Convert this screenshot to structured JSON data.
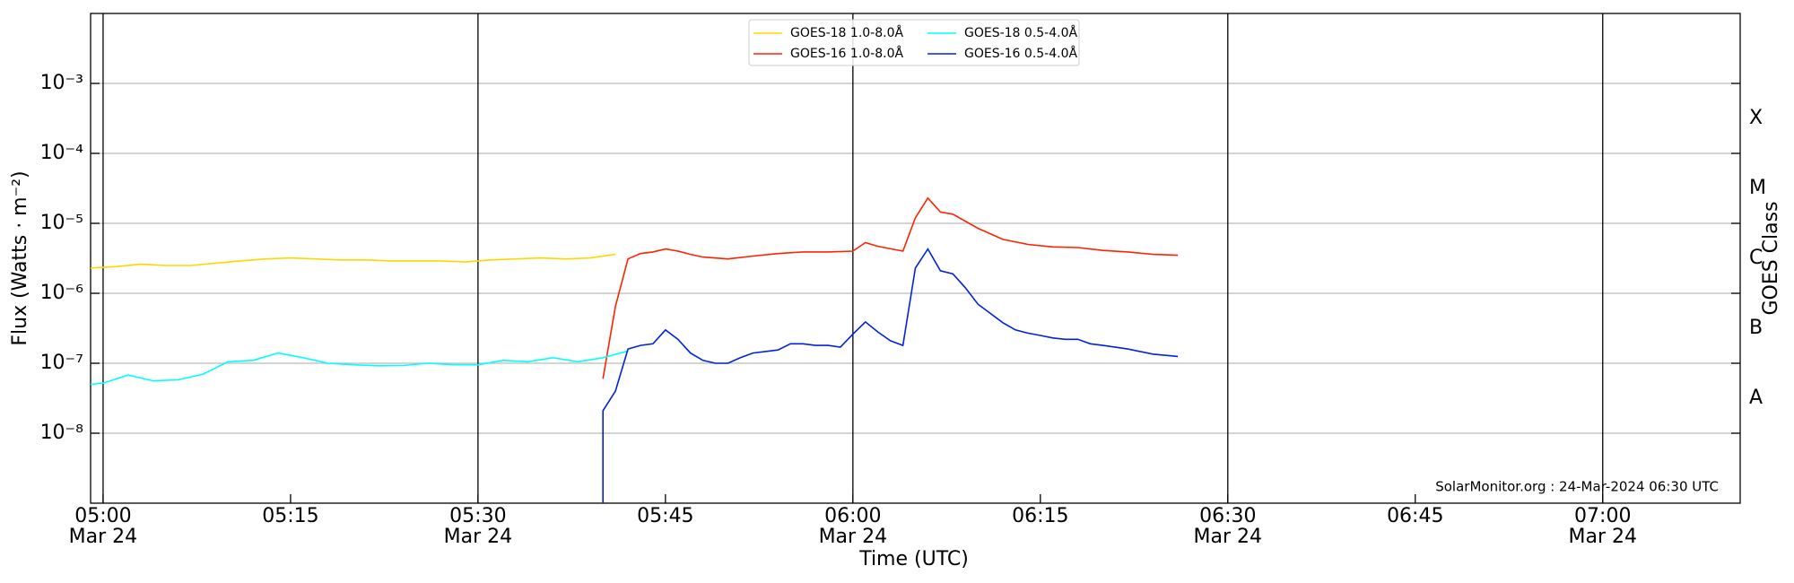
{
  "chart_data": {
    "type": "line",
    "log_y": true,
    "grid": true,
    "xlabel": "Time (UTC)",
    "ylabel": "Flux (Watts · m⁻²)",
    "y2label": "GOES Class",
    "annotation": "SolarMonitor.org : 24-Mar-2024 06:30 UTC",
    "legend": "top-center",
    "xlim": [
      "04:59",
      "07:11"
    ],
    "xticks": [
      {
        "value": "05:00",
        "label": [
          "05:00",
          "Mar 24"
        ]
      },
      "05:15",
      {
        "value": "05:30",
        "label": [
          "05:30",
          "Mar 24"
        ]
      },
      "05:45",
      {
        "value": "06:00",
        "label": [
          "06:00",
          "Mar 24"
        ]
      },
      "06:15",
      {
        "value": "06:30",
        "label": [
          "06:30",
          "Mar 24"
        ]
      },
      "06:45",
      {
        "value": "07:00",
        "label": [
          "07:00",
          "Mar 24"
        ]
      }
    ],
    "vlines": [
      "05:00",
      "05:30",
      "06:00",
      "06:30",
      "07:00"
    ],
    "ylim": [
      1e-09,
      0.01
    ],
    "yticks": [
      {
        "value": 1e-08,
        "label": "10⁻⁸"
      },
      {
        "value": 1e-07,
        "label": "10⁻⁷"
      },
      {
        "value": 1e-06,
        "label": "10⁻⁶"
      },
      {
        "value": 1e-05,
        "label": "10⁻⁵"
      },
      {
        "value": 0.0001,
        "label": "10⁻⁴"
      },
      {
        "value": 0.001,
        "label": "10⁻³"
      }
    ],
    "y2lim": [
      1e-09,
      0.01
    ],
    "y2ticks": [
      {
        "value": 3.162e-08,
        "label": "A"
      },
      {
        "value": 3.162e-07,
        "label": "B"
      },
      {
        "value": 3.162e-06,
        "label": "C"
      },
      {
        "value": 3.162e-05,
        "label": "M"
      },
      {
        "value": 0.0003162,
        "label": "X"
      }
    ],
    "series": [
      {
        "name": "GOES-18 1.0-8.0Å",
        "color": "#ffd700",
        "x": [
          "04:59",
          "05:01",
          "05:03",
          "05:05",
          "05:07",
          "05:09",
          "05:11",
          "05:13",
          "05:15",
          "05:17",
          "05:19",
          "05:21",
          "05:23",
          "05:25",
          "05:27",
          "05:29",
          "05:31",
          "05:33",
          "05:35",
          "05:37",
          "05:39",
          "05:41"
        ],
        "values": [
          2.3e-06,
          2.4e-06,
          2.6e-06,
          2.5e-06,
          2.5e-06,
          2.7e-06,
          2.9e-06,
          3.1e-06,
          3.2e-06,
          3.1e-06,
          3e-06,
          3e-06,
          2.9e-06,
          2.9e-06,
          2.9e-06,
          2.8e-06,
          3e-06,
          3.1e-06,
          3.2e-06,
          3.1e-06,
          3.2e-06,
          3.6e-06
        ]
      },
      {
        "name": "GOES-16 1.0-8.0Å",
        "color": "#ff2200",
        "x": [
          "05:40",
          "05:41",
          "05:42",
          "05:43",
          "05:44",
          "05:45",
          "05:46",
          "05:47",
          "05:48",
          "05:50",
          "05:52",
          "05:54",
          "05:56",
          "05:58",
          "06:00",
          "06:01",
          "06:02",
          "06:04",
          "06:05",
          "06:06",
          "06:07",
          "06:08",
          "06:10",
          "06:12",
          "06:14",
          "06:16",
          "06:18",
          "06:20",
          "06:22",
          "06:24",
          "06:26"
        ],
        "values": [
          6e-08,
          6.5e-07,
          3.1e-06,
          3.7e-06,
          3.9e-06,
          4.3e-06,
          4e-06,
          3.6e-06,
          3.3e-06,
          3.1e-06,
          3.4e-06,
          3.7e-06,
          3.9e-06,
          3.9e-06,
          4e-06,
          5.3e-06,
          4.7e-06,
          4e-06,
          1.2e-05,
          2.3e-05,
          1.45e-05,
          1.35e-05,
          8.5e-06,
          5.9e-06,
          5e-06,
          4.6e-06,
          4.5e-06,
          4.1e-06,
          3.9e-06,
          3.6e-06,
          3.5e-06
        ]
      },
      {
        "name": "GOES-18 0.5-4.0Å",
        "color": "#00ffff",
        "x": [
          "04:59",
          "05:00",
          "05:02",
          "05:04",
          "05:06",
          "05:08",
          "05:10",
          "05:12",
          "05:14",
          "05:16",
          "05:18",
          "05:20",
          "05:22",
          "05:24",
          "05:26",
          "05:28",
          "05:30",
          "05:32",
          "05:34",
          "05:36",
          "05:38",
          "05:40",
          "05:42"
        ],
        "values": [
          5e-08,
          5.2e-08,
          6.8e-08,
          5.6e-08,
          5.8e-08,
          7e-08,
          1.05e-07,
          1.1e-07,
          1.4e-07,
          1.2e-07,
          1e-07,
          9.5e-08,
          9.2e-08,
          9.3e-08,
          1e-07,
          9.5e-08,
          9.5e-08,
          1.1e-07,
          1.05e-07,
          1.2e-07,
          1.05e-07,
          1.2e-07,
          1.5e-07
        ]
      },
      {
        "name": "GOES-16 0.5-4.0Å",
        "color": "#0022dd",
        "x": [
          "05:40",
          "05:40",
          "05:41",
          "05:42",
          "05:43",
          "05:44",
          "05:45",
          "05:46",
          "05:47",
          "05:48",
          "05:49",
          "05:50",
          "05:51",
          "05:52",
          "05:54",
          "05:55",
          "05:56",
          "05:57",
          "05:58",
          "05:59",
          "06:00",
          "06:01",
          "06:02",
          "06:03",
          "06:04",
          "06:05",
          "06:06",
          "06:07",
          "06:08",
          "06:09",
          "06:10",
          "06:12",
          "06:13",
          "06:14",
          "06:15",
          "06:16",
          "06:17",
          "06:18",
          "06:19",
          "06:20",
          "06:22",
          "06:24",
          "06:26"
        ],
        "values": [
          1e-09,
          2.1e-08,
          4e-08,
          1.6e-07,
          1.8e-07,
          1.9e-07,
          3e-07,
          2.2e-07,
          1.4e-07,
          1.1e-07,
          1e-07,
          1e-07,
          1.2e-07,
          1.4e-07,
          1.55e-07,
          1.9e-07,
          1.9e-07,
          1.8e-07,
          1.8e-07,
          1.7e-07,
          2.6e-07,
          3.9e-07,
          2.8e-07,
          2.1e-07,
          1.8e-07,
          2.3e-06,
          4.3e-06,
          2.1e-06,
          1.9e-06,
          1.2e-06,
          7e-07,
          3.8e-07,
          3e-07,
          2.7e-07,
          2.5e-07,
          2.3e-07,
          2.2e-07,
          2.2e-07,
          1.9e-07,
          1.8e-07,
          1.6e-07,
          1.35e-07,
          1.25e-07
        ]
      }
    ]
  }
}
